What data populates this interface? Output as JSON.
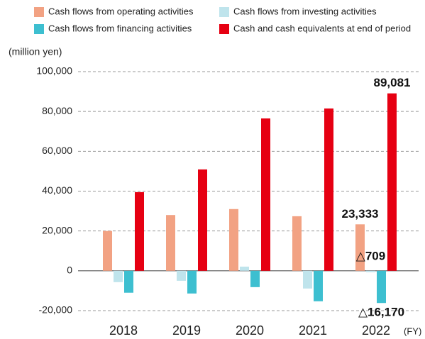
{
  "chart_data": {
    "type": "bar",
    "y_axis_label": "(million yen)",
    "x_axis_label": "(FY)",
    "categories": [
      "2018",
      "2019",
      "2020",
      "2021",
      "2022"
    ],
    "series": [
      {
        "name": "Cash flows from operating activities",
        "color": "#f2a283",
        "values": [
          20000,
          28000,
          31000,
          27400,
          23333
        ],
        "value_labels": [
          null,
          null,
          null,
          null,
          "23,333"
        ]
      },
      {
        "name": "Cash flows from investing activities",
        "color": "#bfe4ec",
        "values": [
          -5700,
          -5000,
          2100,
          -8900,
          -709
        ],
        "value_labels": [
          null,
          null,
          null,
          null,
          "△709"
        ]
      },
      {
        "name": "Cash flows from financing activities",
        "color": "#3dbfd0",
        "values": [
          -11000,
          -11400,
          -8200,
          -15300,
          -16170
        ],
        "value_labels": [
          null,
          null,
          null,
          null,
          "△16,170"
        ]
      },
      {
        "name": "Cash and cash equivalents at end of period",
        "color": "#e60012",
        "values": [
          39500,
          50900,
          76500,
          81500,
          89081
        ],
        "value_labels": [
          null,
          null,
          null,
          null,
          "89,081"
        ]
      }
    ],
    "ylim": [
      -20000,
      100000
    ],
    "yticks": [
      {
        "value": -20000,
        "label": "-20,000"
      },
      0,
      {
        "value": 20000,
        "label": "20,000"
      },
      {
        "value": 40000,
        "label": "40,000"
      },
      {
        "value": 60000,
        "label": "60,000"
      },
      {
        "value": 80000,
        "label": "80,000"
      },
      {
        "value": 100000,
        "label": "100,000"
      }
    ],
    "grid": true
  }
}
